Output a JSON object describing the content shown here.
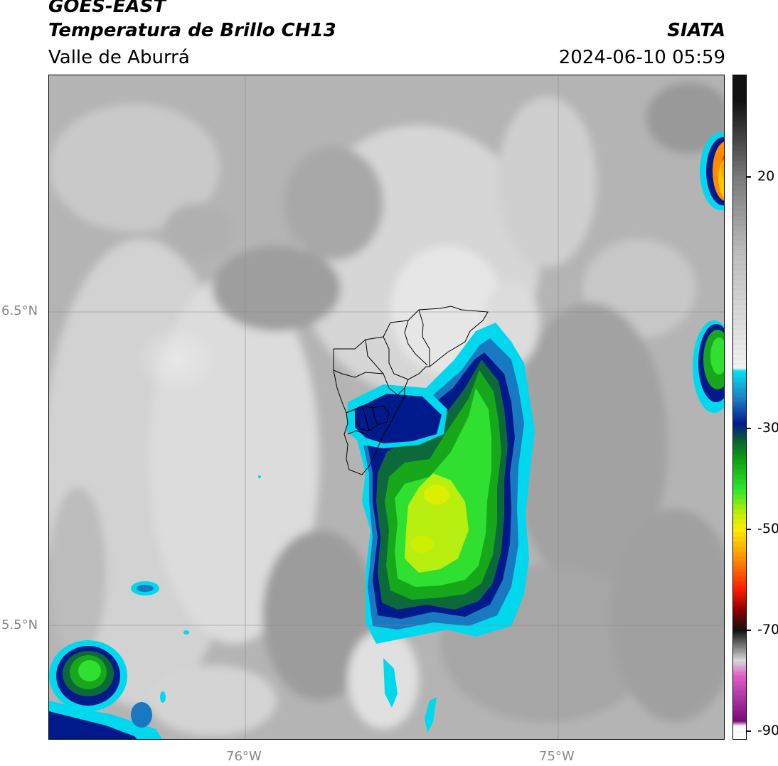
{
  "header": {
    "satellite": "GOES-EAST",
    "product": "Temperatura de Brillo CH13",
    "region": "Valle de Aburrá",
    "organization": "SIATA",
    "datetime": "2024-06-10 05:59"
  },
  "map": {
    "lat_labels": [
      "6.5°N",
      "5.5°N"
    ],
    "lon_labels": [
      "76°W",
      "75°W"
    ],
    "gridlines": true
  },
  "colorbar": {
    "tick_labels": [
      "20",
      "-30",
      "-50",
      "-70",
      "-90"
    ],
    "stops": [
      {
        "v": 35,
        "c": "#111111"
      },
      {
        "v": 20,
        "c": "#7a7a7a"
      },
      {
        "v": 5,
        "c": "#bdbdbd"
      },
      {
        "v": -18,
        "c": "#f2f2f2"
      },
      {
        "v": -18.5,
        "c": "#00e5f5"
      },
      {
        "v": -24,
        "c": "#1e7fc4"
      },
      {
        "v": -29,
        "c": "#001a8c"
      },
      {
        "v": -32,
        "c": "#0a5a3a"
      },
      {
        "v": -36,
        "c": "#0fa010"
      },
      {
        "v": -42,
        "c": "#2fe82f"
      },
      {
        "v": -47,
        "c": "#c8f000"
      },
      {
        "v": -50,
        "c": "#ffee00"
      },
      {
        "v": -56,
        "c": "#ff8c00"
      },
      {
        "v": -62,
        "c": "#ff1a00"
      },
      {
        "v": -66,
        "c": "#8c0000"
      },
      {
        "v": -70,
        "c": "#111111"
      },
      {
        "v": -76,
        "c": "#d9d9d9"
      },
      {
        "v": -79,
        "c": "#e060c8"
      },
      {
        "v": -88,
        "c": "#7a0a7a"
      },
      {
        "v": -89,
        "c": "#ffffff"
      },
      {
        "v": -92,
        "c": "#ffffff"
      }
    ]
  }
}
